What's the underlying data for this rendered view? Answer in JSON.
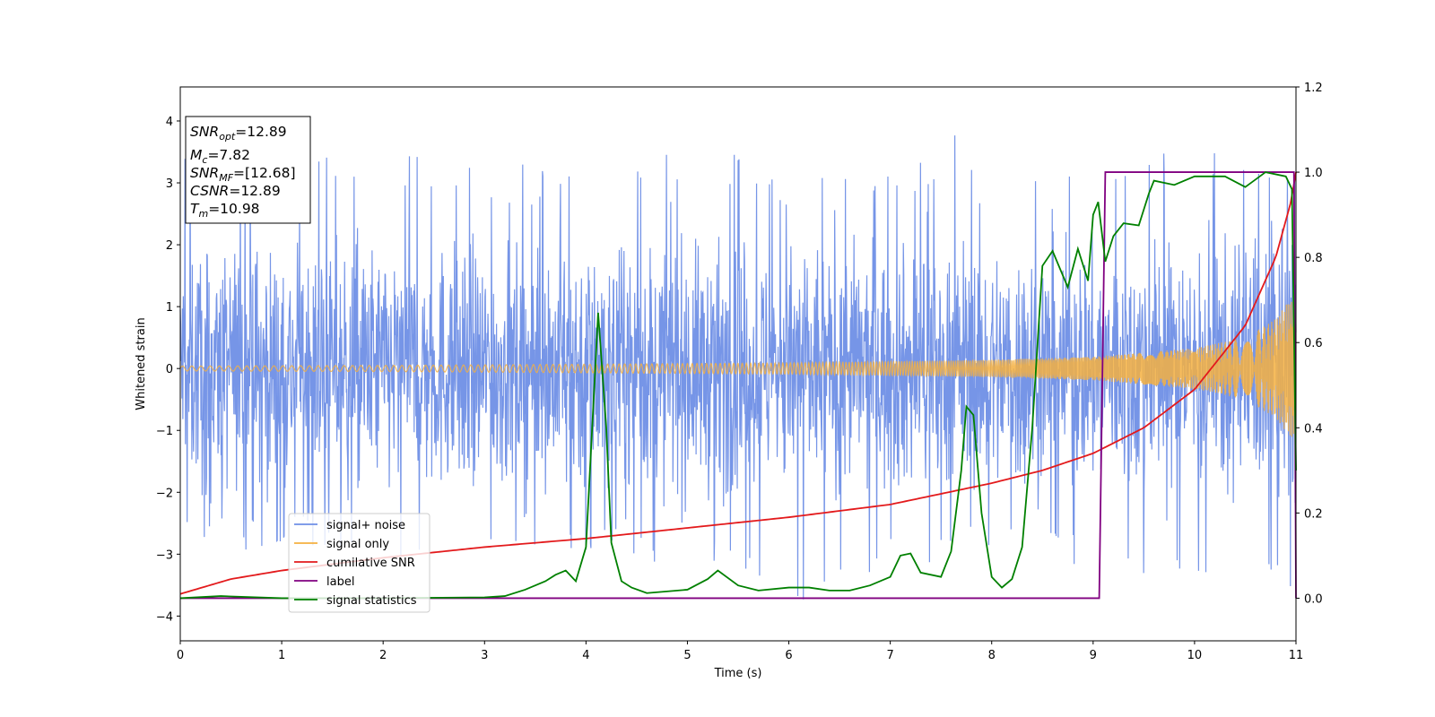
{
  "chart_data": {
    "type": "line",
    "title": "",
    "xlabel": "Time (s)",
    "ylabel": "Whitened strain",
    "xlim": [
      0,
      11
    ],
    "ylim": [
      -4.4,
      4.55
    ],
    "y2lim": [
      -0.1,
      1.2
    ],
    "xticks": [
      0,
      1,
      2,
      3,
      4,
      5,
      6,
      7,
      8,
      9,
      10,
      11
    ],
    "xtick_labels": [
      "0",
      "1",
      "2",
      "3",
      "4",
      "5",
      "6",
      "7",
      "8",
      "9",
      "10",
      "11"
    ],
    "yticks": [
      -4,
      -3,
      -2,
      -1,
      0,
      1,
      2,
      3,
      4
    ],
    "ytick_labels": [
      "−4",
      "−3",
      "−2",
      "−1",
      "0",
      "1",
      "2",
      "3",
      "4"
    ],
    "y2ticks": [
      0.0,
      0.2,
      0.4,
      0.6,
      0.8,
      1.0,
      1.2
    ],
    "y2tick_labels": [
      "0.0",
      "0.2",
      "0.4",
      "0.6",
      "0.8",
      "1.0",
      "1.2"
    ],
    "legend_position": "lower-left",
    "series": [
      {
        "name": "signal+ noise",
        "color": "#6f8fe6",
        "axis": "left",
        "description": "whitened strain noise envelope, roughly ±2.5 with spikes up to about ±4",
        "upper_envelope": [
          [
            0,
            4.15
          ],
          [
            0.5,
            3.6
          ],
          [
            1,
            3.7
          ],
          [
            2,
            3.5
          ],
          [
            3,
            3.3
          ],
          [
            4,
            3.3
          ],
          [
            5,
            3.6
          ],
          [
            6,
            3.3
          ],
          [
            7,
            3.3
          ],
          [
            7.8,
            3.9
          ],
          [
            9,
            3.6
          ],
          [
            10,
            3.55
          ],
          [
            11,
            3.35
          ]
        ],
        "lower_envelope": [
          [
            0,
            -2.6
          ],
          [
            0.5,
            -3.1
          ],
          [
            1,
            -2.8
          ],
          [
            2,
            -3.0
          ],
          [
            3,
            -3.3
          ],
          [
            4,
            -3.2
          ],
          [
            5,
            -3.2
          ],
          [
            5.8,
            -3.9
          ],
          [
            6.4,
            -4.0
          ],
          [
            7,
            -3.3
          ],
          [
            8,
            -3.0
          ],
          [
            9,
            -3.4
          ],
          [
            10,
            -3.9
          ],
          [
            11,
            -3.95
          ]
        ]
      },
      {
        "name": "signal only",
        "color": "#f5b041",
        "axis": "left",
        "description": "chirp waveform with amplitude growing toward merger",
        "amplitude": [
          [
            0,
            0.04
          ],
          [
            2,
            0.05
          ],
          [
            4,
            0.07
          ],
          [
            6,
            0.09
          ],
          [
            8,
            0.14
          ],
          [
            9,
            0.19
          ],
          [
            10,
            0.33
          ],
          [
            10.5,
            0.5
          ],
          [
            10.8,
            0.8
          ],
          [
            10.98,
            1.2
          ]
        ]
      },
      {
        "name": "cumilative SNR",
        "color": "#e31a1c",
        "axis": "right",
        "points": [
          [
            0,
            0.01
          ],
          [
            0.5,
            0.045
          ],
          [
            1,
            0.065
          ],
          [
            2,
            0.095
          ],
          [
            3,
            0.12
          ],
          [
            4,
            0.14
          ],
          [
            5,
            0.165
          ],
          [
            6,
            0.19
          ],
          [
            7,
            0.22
          ],
          [
            8,
            0.27
          ],
          [
            8.5,
            0.3
          ],
          [
            9,
            0.34
          ],
          [
            9.5,
            0.4
          ],
          [
            10,
            0.49
          ],
          [
            10.5,
            0.64
          ],
          [
            10.8,
            0.8
          ],
          [
            10.95,
            0.93
          ],
          [
            11,
            1.0
          ]
        ]
      },
      {
        "name": "label",
        "color": "#800080",
        "axis": "right",
        "points": [
          [
            0,
            0.0
          ],
          [
            9.06,
            0.0
          ],
          [
            9.12,
            1.0
          ],
          [
            10.98,
            1.0
          ],
          [
            11,
            0.0
          ]
        ]
      },
      {
        "name": "signal statistics",
        "color": "#008000",
        "axis": "right",
        "points": [
          [
            0,
            0.0
          ],
          [
            0.4,
            0.005
          ],
          [
            1,
            0.0
          ],
          [
            2,
            0.0
          ],
          [
            3,
            0.002
          ],
          [
            3.2,
            0.005
          ],
          [
            3.4,
            0.02
          ],
          [
            3.6,
            0.04
          ],
          [
            3.7,
            0.055
          ],
          [
            3.8,
            0.065
          ],
          [
            3.9,
            0.04
          ],
          [
            4.0,
            0.12
          ],
          [
            4.05,
            0.35
          ],
          [
            4.12,
            0.67
          ],
          [
            4.2,
            0.4
          ],
          [
            4.25,
            0.13
          ],
          [
            4.35,
            0.04
          ],
          [
            4.45,
            0.025
          ],
          [
            4.6,
            0.012
          ],
          [
            5.0,
            0.02
          ],
          [
            5.2,
            0.045
          ],
          [
            5.3,
            0.065
          ],
          [
            5.5,
            0.03
          ],
          [
            5.7,
            0.018
          ],
          [
            6.0,
            0.025
          ],
          [
            6.2,
            0.025
          ],
          [
            6.4,
            0.018
          ],
          [
            6.6,
            0.018
          ],
          [
            6.8,
            0.03
          ],
          [
            7.0,
            0.05
          ],
          [
            7.1,
            0.1
          ],
          [
            7.2,
            0.105
          ],
          [
            7.3,
            0.06
          ],
          [
            7.5,
            0.05
          ],
          [
            7.6,
            0.11
          ],
          [
            7.7,
            0.3
          ],
          [
            7.75,
            0.45
          ],
          [
            7.82,
            0.43
          ],
          [
            7.9,
            0.2
          ],
          [
            8.0,
            0.05
          ],
          [
            8.1,
            0.025
          ],
          [
            8.2,
            0.045
          ],
          [
            8.3,
            0.12
          ],
          [
            8.4,
            0.4
          ],
          [
            8.5,
            0.78
          ],
          [
            8.6,
            0.815
          ],
          [
            8.75,
            0.73
          ],
          [
            8.85,
            0.82
          ],
          [
            8.95,
            0.745
          ],
          [
            9.0,
            0.9
          ],
          [
            9.05,
            0.93
          ],
          [
            9.12,
            0.79
          ],
          [
            9.2,
            0.85
          ],
          [
            9.3,
            0.88
          ],
          [
            9.45,
            0.875
          ],
          [
            9.55,
            0.95
          ],
          [
            9.6,
            0.98
          ],
          [
            9.8,
            0.97
          ],
          [
            10.0,
            0.99
          ],
          [
            10.3,
            0.99
          ],
          [
            10.5,
            0.965
          ],
          [
            10.7,
            1.0
          ],
          [
            10.9,
            0.99
          ],
          [
            10.96,
            0.96
          ],
          [
            11,
            0.3
          ]
        ]
      }
    ],
    "info_box": {
      "snr_opt_sub": "opt",
      "snr_opt_value": "=12.89",
      "mc_sub": "c",
      "mc_value": "=7.82",
      "snr_mf_sub": "MF",
      "snr_mf_value": "=[12.68]",
      "csnr_value": "=12.89",
      "tm_sub": "m",
      "tm_value": "=10.98",
      "snr_base": "SNR",
      "m_base": "M",
      "csnr_base": "CSNR",
      "t_base": "T"
    }
  }
}
